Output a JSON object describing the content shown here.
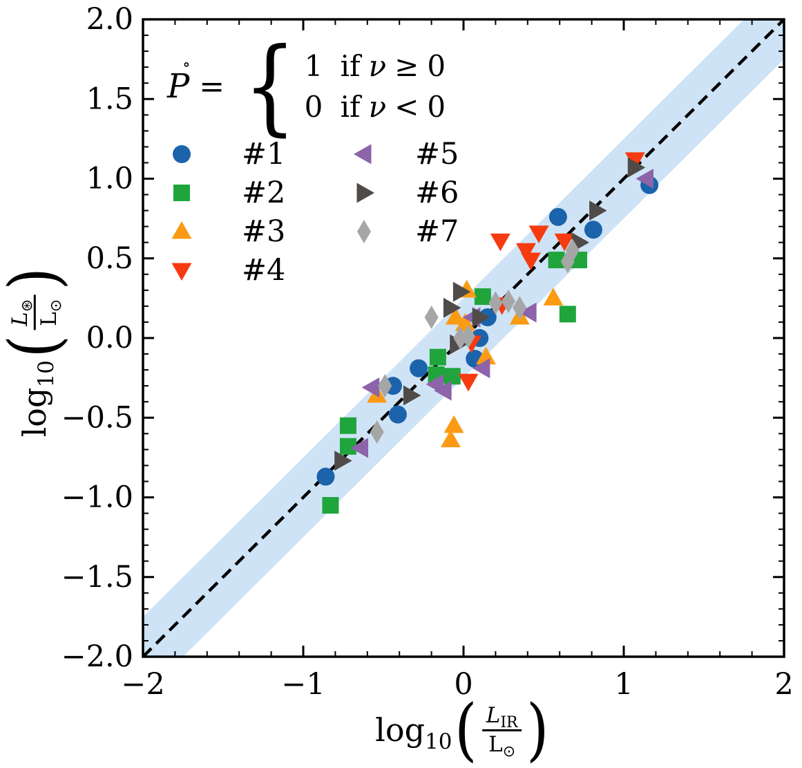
{
  "figure": {
    "background": "#ffffff",
    "frame_color": "#000000"
  },
  "equation": {
    "lhs": "P",
    "accent": "∘",
    "equals": "=",
    "brace": "{",
    "cases": [
      {
        "value": "1",
        "cond_if": "if",
        "var": "ν",
        "op": "≥",
        "rhs": "0"
      },
      {
        "value": "0",
        "cond_if": "if",
        "var": "ν",
        "op": "<",
        "rhs": "0"
      }
    ]
  },
  "legend": {
    "items": [
      {
        "label": "#1",
        "marker": "circle",
        "color": "#1b63ab"
      },
      {
        "label": "#2",
        "marker": "square",
        "color": "#1fa53c"
      },
      {
        "label": "#3",
        "marker": "triangle-up",
        "color": "#fb9b14"
      },
      {
        "label": "#4",
        "marker": "triangle-down",
        "color": "#f63b10"
      },
      {
        "label": "#5",
        "marker": "triangle-left",
        "color": "#8d63a9"
      },
      {
        "label": "#6",
        "marker": "triangle-right",
        "color": "#4f4b48"
      },
      {
        "label": "#7",
        "marker": "diamond-thin",
        "color": "#a6a6a6"
      }
    ]
  },
  "axes": {
    "xlabel": {
      "func": "log",
      "funcsub": "10",
      "open": "(",
      "num_main": "L",
      "num_sub": "IR",
      "den_main": "L",
      "den_sub": "⊙",
      "close": ")"
    },
    "ylabel": {
      "func": "log",
      "funcsub": "10",
      "open": "(",
      "num_main": "L",
      "num_sub": "⊛",
      "den_main": "L",
      "den_sub": "⊙",
      "close": ")"
    },
    "x_tick_labels": [
      "−2",
      "−1",
      "0",
      "1",
      "2"
    ],
    "y_tick_labels": [
      "−2.0",
      "−1.5",
      "−1.0",
      "−0.5",
      "0.0",
      "0.5",
      "1.0",
      "1.5",
      "2.0"
    ]
  },
  "chart_data": {
    "type": "scatter",
    "title": "",
    "xlabel": "log10(L_IR / L_sun)",
    "ylabel": "log10(L_star / L_sun)",
    "xlim": [
      -2,
      2
    ],
    "ylim": [
      -2,
      2
    ],
    "x_major_ticks": [
      -2,
      -1,
      0,
      1,
      2
    ],
    "x_minor_step": 0.2,
    "y_major_ticks": [
      -2,
      -1.5,
      -1,
      -0.5,
      0,
      0.5,
      1,
      1.5,
      2
    ],
    "y_minor_step": 0.1,
    "grid": false,
    "legend_position": "upper-left-inside",
    "reference_line": {
      "type": "identity y=x",
      "style": "dashed",
      "color": "#000000"
    },
    "reference_band": {
      "type": "y = x ± 0.25",
      "halfwidth": 0.25,
      "color": "#cfe3f6"
    },
    "series": [
      {
        "name": "#1",
        "marker": "circle",
        "color": "#1b63ab",
        "points": [
          [
            1.16,
            0.96
          ],
          [
            0.81,
            0.68
          ],
          [
            0.59,
            0.76
          ],
          [
            0.15,
            0.13
          ],
          [
            0.1,
            0.0
          ],
          [
            0.07,
            -0.13
          ],
          [
            -0.28,
            -0.19
          ],
          [
            -0.41,
            -0.48
          ],
          [
            -0.44,
            -0.3
          ],
          [
            -0.86,
            -0.87
          ]
        ]
      },
      {
        "name": "#2",
        "marker": "square",
        "color": "#1fa53c",
        "points": [
          [
            0.12,
            0.26
          ],
          [
            0.58,
            0.49
          ],
          [
            0.72,
            0.49
          ],
          [
            0.65,
            0.15
          ],
          [
            -0.16,
            -0.12
          ],
          [
            -0.17,
            -0.23
          ],
          [
            -0.07,
            -0.24
          ],
          [
            -0.72,
            -0.55
          ],
          [
            -0.72,
            -0.68
          ],
          [
            -0.83,
            -1.05
          ]
        ]
      },
      {
        "name": "#3",
        "marker": "triangle-up",
        "color": "#fb9b14",
        "points": [
          [
            0.02,
            0.3
          ],
          [
            -0.05,
            0.13
          ],
          [
            0.01,
            0.09
          ],
          [
            0.35,
            0.13
          ],
          [
            0.56,
            0.25
          ],
          [
            0.14,
            -0.12
          ],
          [
            -0.06,
            -0.55
          ],
          [
            -0.08,
            -0.64
          ],
          [
            -0.54,
            -0.36
          ]
        ]
      },
      {
        "name": "#4",
        "marker": "triangle-down",
        "color": "#f63b10",
        "points": [
          [
            1.07,
            1.12
          ],
          [
            0.47,
            0.66
          ],
          [
            0.63,
            0.61
          ],
          [
            0.23,
            0.61
          ],
          [
            0.39,
            0.55
          ],
          [
            0.42,
            0.49
          ],
          [
            0.24,
            0.21
          ],
          [
            0.05,
            -0.03
          ],
          [
            0.03,
            -0.27
          ]
        ]
      },
      {
        "name": "#5",
        "marker": "triangle-left",
        "color": "#8d63a9",
        "points": [
          [
            1.14,
            1.0
          ],
          [
            0.41,
            0.16
          ],
          [
            0.06,
            0.13
          ],
          [
            0.12,
            -0.19
          ],
          [
            -0.17,
            -0.29
          ],
          [
            -0.12,
            -0.33
          ],
          [
            -0.57,
            -0.31
          ],
          [
            -0.64,
            -0.69
          ]
        ]
      },
      {
        "name": "#6",
        "marker": "triangle-right",
        "color": "#4f4b48",
        "points": [
          [
            1.07,
            1.07
          ],
          [
            0.83,
            0.8
          ],
          [
            0.72,
            0.6
          ],
          [
            -0.02,
            0.29
          ],
          [
            -0.08,
            0.19
          ],
          [
            0.1,
            0.13
          ],
          [
            -0.04,
            -0.04
          ],
          [
            -0.33,
            -0.36
          ],
          [
            -0.76,
            -0.77
          ]
        ]
      },
      {
        "name": "#7",
        "marker": "diamond-thin",
        "color": "#a6a6a6",
        "points": [
          [
            -0.2,
            0.13
          ],
          [
            0.2,
            0.22
          ],
          [
            0.28,
            0.23
          ],
          [
            0.35,
            0.19
          ],
          [
            0.68,
            0.55
          ],
          [
            0.65,
            0.48
          ],
          [
            -0.02,
            0.0
          ],
          [
            0.03,
            0.01
          ],
          [
            -0.49,
            -0.3
          ],
          [
            -0.54,
            -0.59
          ]
        ]
      }
    ]
  }
}
